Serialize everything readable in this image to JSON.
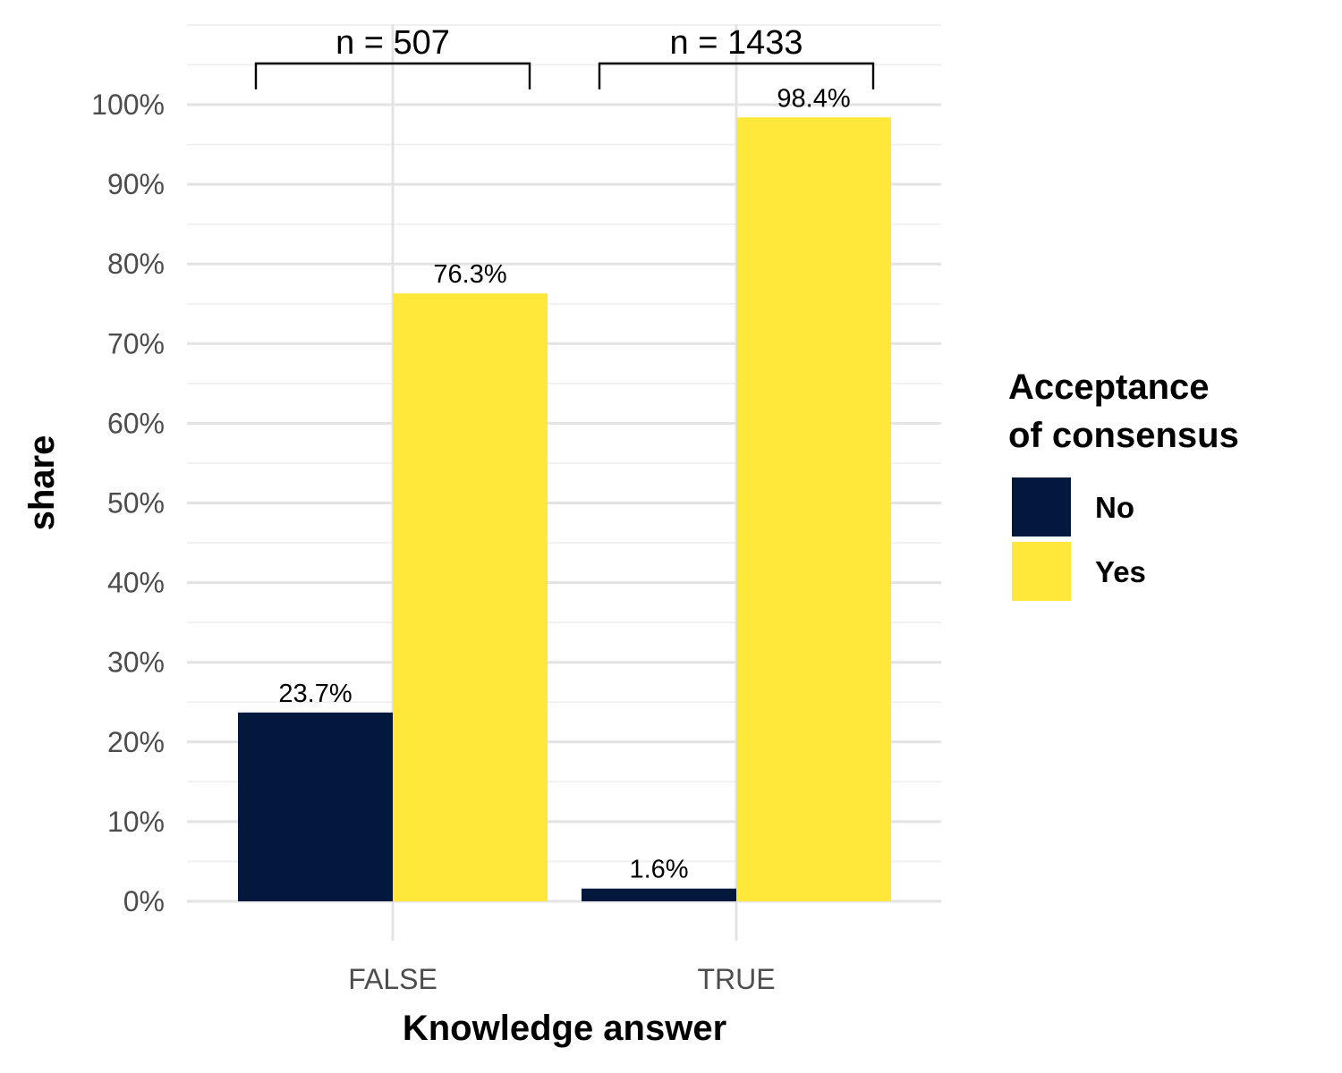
{
  "chart_data": {
    "type": "bar",
    "categories": [
      "FALSE",
      "TRUE"
    ],
    "series": [
      {
        "name": "No",
        "values": [
          23.7,
          1.6
        ],
        "color": "#02183d"
      },
      {
        "name": "Yes",
        "values": [
          76.3,
          98.4
        ],
        "color": "#ffe83a"
      }
    ],
    "data_labels": [
      [
        "23.7%",
        "1.6%"
      ],
      [
        "76.3%",
        "98.4%"
      ]
    ],
    "xlabel": "Knowledge answer",
    "ylabel": "share",
    "ylim": [
      0,
      100
    ],
    "y_ticks": [
      0,
      10,
      20,
      30,
      40,
      50,
      60,
      70,
      80,
      90,
      100
    ],
    "y_tick_labels": [
      "0%",
      "10%",
      "20%",
      "30%",
      "40%",
      "50%",
      "60%",
      "70%",
      "80%",
      "90%",
      "100%"
    ],
    "grid": true,
    "legend": {
      "title_lines": [
        "Acceptance",
        "of consensus"
      ],
      "position": "right"
    },
    "annotations": [
      {
        "category": "FALSE",
        "text": "n = 507"
      },
      {
        "category": "TRUE",
        "text": "n = 1433"
      }
    ]
  }
}
